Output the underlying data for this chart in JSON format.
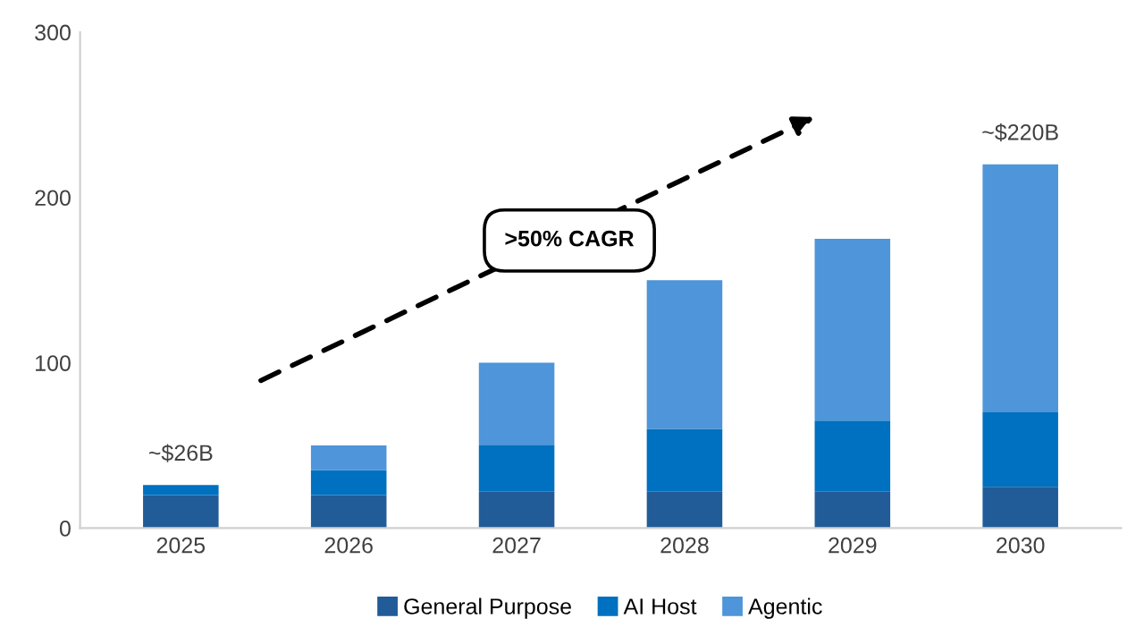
{
  "chart_data": {
    "type": "bar",
    "stacked": true,
    "categories": [
      "2025",
      "2026",
      "2027",
      "2028",
      "2029",
      "2030"
    ],
    "series": [
      {
        "name": "General Purpose",
        "color": "#215c98",
        "values": [
          20,
          20,
          22,
          22,
          22,
          25
        ]
      },
      {
        "name": "AI Host",
        "color": "#0070c0",
        "values": [
          6,
          15,
          28,
          38,
          43,
          45
        ]
      },
      {
        "name": "Agentic",
        "color": "#4e95d9",
        "values": [
          0,
          15,
          50,
          90,
          110,
          150
        ]
      }
    ],
    "ylim": [
      0,
      300
    ],
    "yticks": [
      0,
      100,
      200,
      300
    ],
    "grid": false,
    "legend": "bottom",
    "annotations": [
      {
        "text": "~$26B",
        "x": "2025",
        "y": 26
      },
      {
        "text": "~$220B",
        "x": "2030",
        "y": 220
      },
      ">50% CAGR"
    ]
  }
}
